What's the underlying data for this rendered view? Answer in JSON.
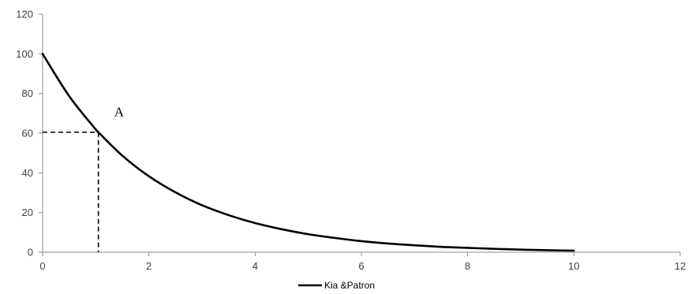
{
  "chart_data": {
    "type": "line",
    "title": "",
    "xlabel": "",
    "ylabel": "",
    "xlim": [
      0,
      12
    ],
    "ylim": [
      0,
      120
    ],
    "x_ticks": [
      0,
      2,
      4,
      6,
      8,
      10,
      12
    ],
    "y_ticks": [
      0,
      20,
      40,
      60,
      80,
      100,
      120
    ],
    "x_tick_labels": [
      "0",
      "2",
      "4",
      "6",
      "8",
      "10",
      "12"
    ],
    "y_tick_labels": [
      "0",
      "20",
      "40",
      "60",
      "80",
      "100",
      "120"
    ],
    "grid": false,
    "legend_position": "bottom",
    "series": [
      {
        "name": "Kia &Patron",
        "color": "#000000",
        "x": [
          0,
          0.5,
          1,
          1.05,
          1.5,
          2,
          2.5,
          3,
          3.5,
          4,
          4.5,
          5,
          5.5,
          6,
          6.5,
          7,
          7.5,
          8,
          8.5,
          9,
          9.5,
          10
        ],
        "y": [
          100,
          78.7,
          61.9,
          60.5,
          48.7,
          38.3,
          30.2,
          23.7,
          18.7,
          14.7,
          11.6,
          9.1,
          7.2,
          5.6,
          4.4,
          3.5,
          2.7,
          2.2,
          1.7,
          1.3,
          1.0,
          0.8
        ]
      }
    ],
    "annotations": [
      {
        "text": "A",
        "point": {
          "x": 1.05,
          "y": 60.5
        },
        "guide_lines": "dashed"
      }
    ]
  }
}
